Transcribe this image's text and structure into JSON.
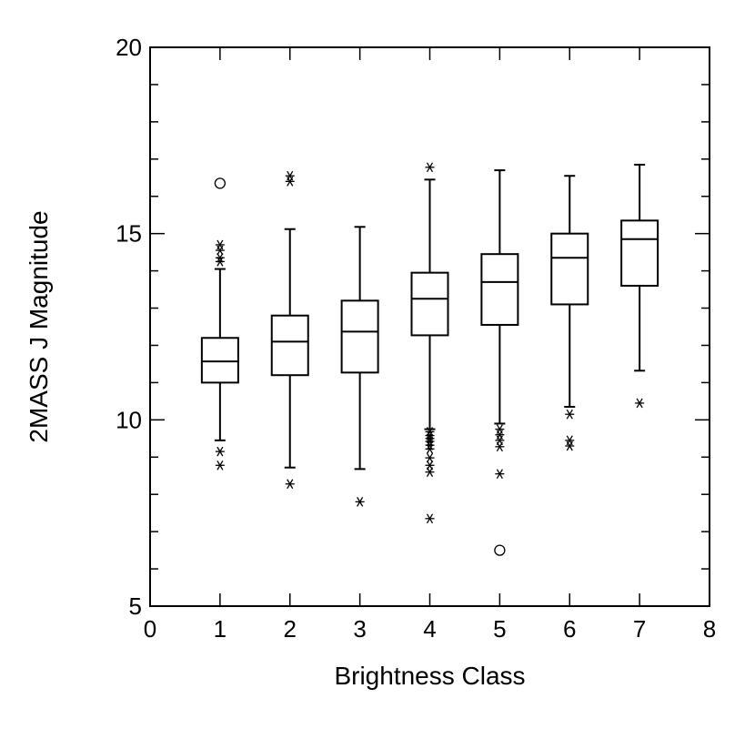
{
  "chart_data": {
    "type": "box",
    "title": "",
    "xlabel": "Brightness Class",
    "ylabel": "2MASS J Magnitude",
    "xlim": [
      0,
      8
    ],
    "ylim": [
      5,
      20
    ],
    "xticks": [
      0,
      1,
      2,
      3,
      4,
      5,
      6,
      7,
      8
    ],
    "yticks_major": [
      5,
      10,
      15,
      20
    ],
    "yticks_minor_step": 1,
    "grid": false,
    "legend": "none",
    "colors": {
      "line": "#000000",
      "background": "#ffffff"
    },
    "boxes": [
      {
        "x": 1,
        "whisker_low": 9.45,
        "q1": 11.0,
        "median": 11.57,
        "q3": 12.2,
        "whisker_high": 14.05,
        "outliers_star": [
          14.25,
          14.35,
          14.55,
          14.7,
          9.15,
          8.78
        ],
        "outliers_circle": [
          16.35
        ]
      },
      {
        "x": 2,
        "whisker_low": 8.72,
        "q1": 11.2,
        "median": 12.1,
        "q3": 12.8,
        "whisker_high": 15.12,
        "outliers_star": [
          16.4,
          16.55,
          8.28
        ],
        "outliers_circle": []
      },
      {
        "x": 3,
        "whisker_low": 8.68,
        "q1": 11.27,
        "median": 12.37,
        "q3": 13.2,
        "whisker_high": 15.18,
        "outliers_star": [
          7.8
        ],
        "outliers_circle": []
      },
      {
        "x": 4,
        "whisker_low": 9.75,
        "q1": 12.27,
        "median": 13.25,
        "q3": 13.95,
        "whisker_high": 16.45,
        "outliers_star": [
          16.78,
          9.68,
          9.58,
          9.5,
          9.42,
          9.32,
          9.22,
          8.98,
          8.78,
          8.6,
          7.35
        ],
        "outliers_circle": []
      },
      {
        "x": 5,
        "whisker_low": 9.9,
        "q1": 12.55,
        "median": 13.7,
        "q3": 14.45,
        "whisker_high": 16.7,
        "outliers_star": [
          9.75,
          9.6,
          9.45,
          9.28,
          8.55
        ],
        "outliers_circle": [
          6.5
        ]
      },
      {
        "x": 6,
        "whisker_low": 10.35,
        "q1": 13.1,
        "median": 14.35,
        "q3": 15.0,
        "whisker_high": 16.55,
        "outliers_star": [
          10.15,
          9.45,
          9.3
        ],
        "outliers_circle": []
      },
      {
        "x": 7,
        "whisker_low": 11.32,
        "q1": 13.6,
        "median": 14.85,
        "q3": 15.35,
        "whisker_high": 16.85,
        "outliers_star": [
          10.45
        ],
        "outliers_circle": []
      }
    ]
  }
}
